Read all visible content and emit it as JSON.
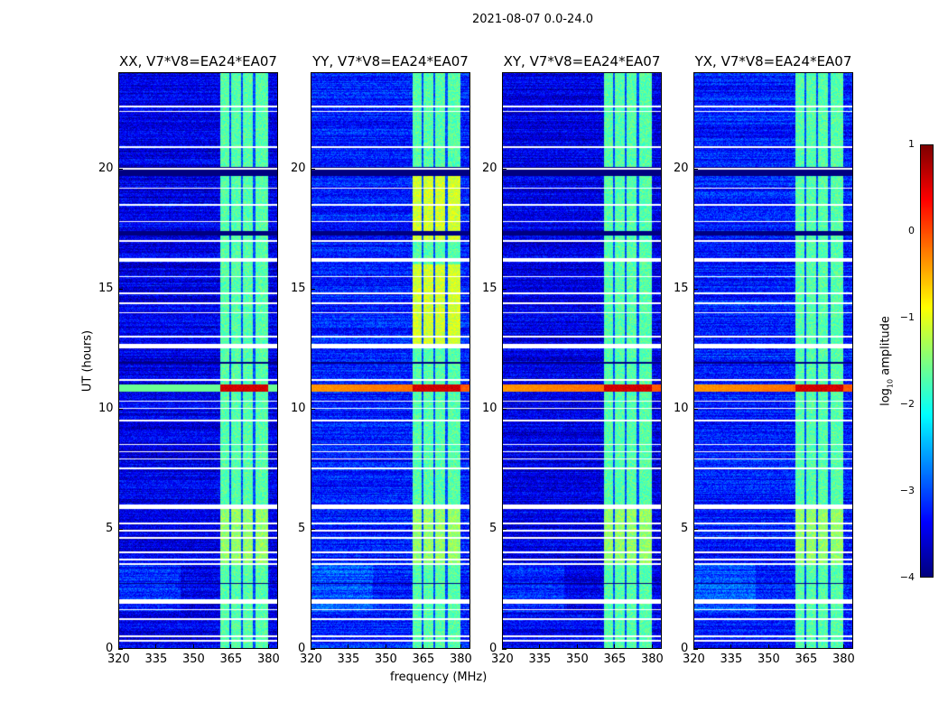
{
  "chart_data": {
    "type": "heatmap",
    "title": "2021-08-07 0.0-24.0",
    "xlabel": "frequency (MHz)",
    "ylabel": "UT (hours)",
    "xlim": [
      320,
      384
    ],
    "ylim": [
      0,
      24
    ],
    "xticks": [
      320,
      335,
      350,
      365,
      380
    ],
    "yticks": [
      0,
      5,
      10,
      15,
      20
    ],
    "panels": [
      {
        "title": "XX, V7*V8=EA24*EA07"
      },
      {
        "title": "YY, V7*V8=EA24*EA07"
      },
      {
        "title": "XY, V7*V8=EA24*EA07"
      },
      {
        "title": "YX, V7*V8=EA24*EA07"
      }
    ],
    "rfi_band_mhz": [
      360.8,
      380.5
    ],
    "rfi_subband_gaps_mhz": [
      364.9,
      369.6,
      374.7
    ],
    "strong_event_hours": [
      10.7,
      11.0
    ],
    "flagged_hours": [
      0.3,
      0.5,
      1.2,
      1.6,
      1.95,
      3.5,
      3.7,
      4.0,
      4.6,
      4.9,
      5.2,
      5.9,
      7.5,
      7.9,
      8.2,
      8.5,
      9.5,
      10.0,
      10.3,
      11.2,
      12.6,
      13.0,
      14.0,
      14.4,
      14.8,
      15.5,
      16.2,
      17.0,
      17.8,
      18.5,
      19.2,
      20.0,
      20.9,
      22.4,
      22.6
    ],
    "colorbar": {
      "label": "log10 amplitude",
      "range": [
        -4,
        1
      ],
      "ticks": [
        1,
        0,
        -1,
        -2,
        -3,
        -4
      ],
      "tick_labels": [
        "1",
        "0",
        "−1",
        "−2",
        "−3",
        "−4"
      ],
      "colormap": "jet"
    }
  }
}
